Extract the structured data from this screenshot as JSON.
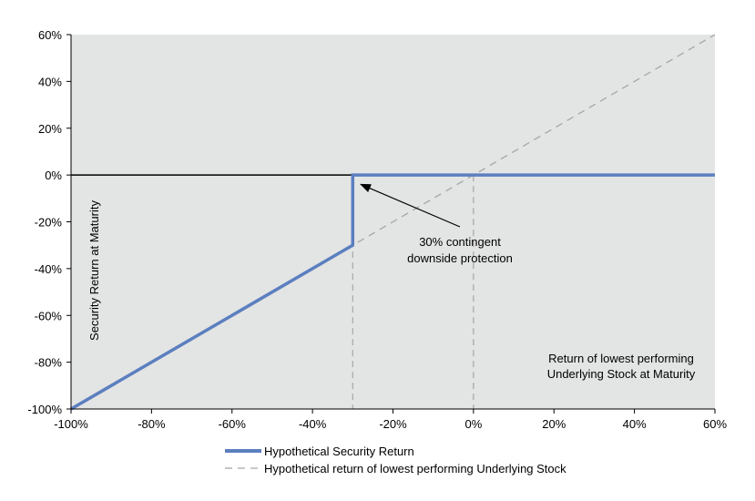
{
  "chart_data": {
    "type": "line",
    "title": "",
    "xlabel": "Return of lowest performing Underlying Stock at Maturity",
    "xlabel_lines": [
      "Return of lowest performing",
      "Underlying Stock at Maturity"
    ],
    "ylabel": "Security Return at Maturity",
    "xlim": [
      -100,
      60
    ],
    "ylim": [
      -100,
      60
    ],
    "x_ticks": [
      -100,
      -80,
      -60,
      -40,
      -20,
      0,
      20,
      40,
      60
    ],
    "y_ticks": [
      -100,
      -80,
      -60,
      -40,
      -20,
      0,
      20,
      40,
      60
    ],
    "x_tick_labels": [
      "-100%",
      "-80%",
      "-60%",
      "-40%",
      "-20%",
      "0%",
      "20%",
      "40%",
      "60%"
    ],
    "y_tick_labels": [
      "-100%",
      "-80%",
      "-60%",
      "-40%",
      "-20%",
      "0%",
      "20%",
      "40%",
      "60%"
    ],
    "grid": false,
    "series": [
      {
        "name": "Hypothetical Security Return",
        "color": "#5b7fbf",
        "style": "solid",
        "x": [
          -100,
          -30,
          -30,
          60
        ],
        "y": [
          -100,
          -30,
          0,
          0
        ]
      },
      {
        "name": "Hypothetical return of lowest performing Underlying Stock",
        "color": "#a6a6a6",
        "style": "dashed",
        "x": [
          -100,
          60
        ],
        "y": [
          -100,
          60
        ]
      }
    ],
    "reference_lines": [
      {
        "orientation": "vertical",
        "x": -30,
        "style": "dashed",
        "color": "#a6a6a6"
      },
      {
        "orientation": "vertical",
        "x": 0,
        "style": "dashed",
        "color": "#a6a6a6"
      },
      {
        "orientation": "horizontal",
        "y": 0,
        "style": "solid",
        "color": "#000000"
      }
    ],
    "annotation": {
      "text_lines": [
        "30% contingent",
        "downside protection"
      ],
      "arrow_to": {
        "x": -28,
        "y": -4
      }
    },
    "legend_position": "bottom",
    "colors": {
      "plot_background": "#e3e4e4",
      "axis": "#000000"
    }
  }
}
